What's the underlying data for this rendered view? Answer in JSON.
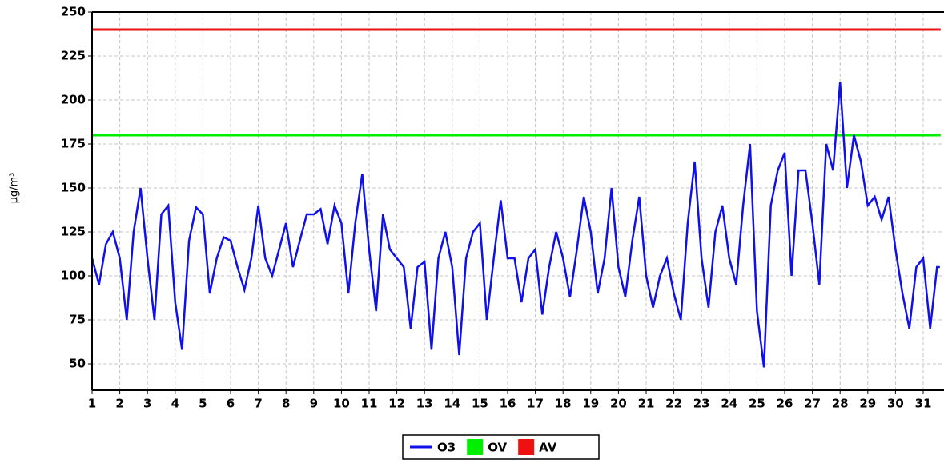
{
  "chart_data": {
    "type": "line",
    "y_label": "µg/m³",
    "x": [
      1,
      1.25,
      1.5,
      1.75,
      2,
      2.25,
      2.5,
      2.75,
      3,
      3.25,
      3.5,
      3.75,
      4,
      4.25,
      4.5,
      4.75,
      5,
      5.25,
      5.5,
      5.75,
      6,
      6.25,
      6.5,
      6.75,
      7,
      7.25,
      7.5,
      7.75,
      8,
      8.25,
      8.5,
      8.75,
      9,
      9.25,
      9.5,
      9.75,
      10,
      10.25,
      10.5,
      10.75,
      11,
      11.25,
      11.5,
      11.75,
      12,
      12.25,
      12.5,
      12.75,
      13,
      13.25,
      13.5,
      13.75,
      14,
      14.25,
      14.5,
      14.75,
      15,
      15.25,
      15.5,
      15.75,
      16,
      16.25,
      16.5,
      16.75,
      17,
      17.25,
      17.5,
      17.75,
      18,
      18.25,
      18.5,
      18.75,
      19,
      19.25,
      19.5,
      19.75,
      20,
      20.25,
      20.5,
      20.75,
      21,
      21.25,
      21.5,
      21.75,
      22,
      22.25,
      22.5,
      22.75,
      23,
      23.25,
      23.5,
      23.75,
      24,
      24.25,
      24.5,
      24.75,
      25,
      25.25,
      25.5,
      25.75,
      26,
      26.25,
      26.5,
      26.75,
      27,
      27.25,
      27.5,
      27.75,
      28,
      28.25,
      28.5,
      28.75,
      29,
      29.25,
      29.5,
      29.75,
      30,
      30.25,
      30.5,
      30.75,
      31,
      31.25,
      31.5,
      31.6
    ],
    "series": [
      {
        "name": "O3",
        "color": "#1010e8",
        "values": [
          110,
          95,
          118,
          125,
          110,
          75,
          125,
          150,
          110,
          75,
          135,
          140,
          85,
          58,
          120,
          139,
          135,
          90,
          110,
          122,
          120,
          105,
          92,
          110,
          140,
          110,
          100,
          115,
          130,
          105,
          120,
          135,
          135,
          138,
          118,
          140,
          130,
          90,
          130,
          158,
          115,
          80,
          135,
          115,
          110,
          105,
          70,
          105,
          108,
          58,
          110,
          125,
          105,
          55,
          110,
          125,
          130,
          75,
          110,
          143,
          110,
          110,
          85,
          110,
          115,
          78,
          105,
          125,
          110,
          88,
          115,
          145,
          125,
          90,
          110,
          150,
          105,
          88,
          120,
          145,
          100,
          82,
          100,
          110,
          90,
          75,
          130,
          165,
          110,
          82,
          125,
          140,
          110,
          95,
          140,
          175,
          80,
          48,
          140,
          160,
          170,
          100,
          160,
          160,
          130,
          95,
          175,
          160,
          210,
          150,
          180,
          165,
          140,
          145,
          132,
          145,
          115,
          90,
          70,
          105,
          110,
          70,
          105,
          105
        ]
      },
      {
        "name": "OV",
        "color": "#00ee00",
        "x": [
          1,
          31.63
        ],
        "values": [
          180,
          180
        ]
      },
      {
        "name": "AV",
        "color": "#ee1111",
        "x": [
          1,
          31.63
        ],
        "values": [
          240,
          240
        ]
      }
    ],
    "xlim": [
      1,
      31.63
    ],
    "ylim": [
      35,
      250
    ],
    "xticks": [
      1,
      2,
      3,
      4,
      5,
      6,
      7,
      8,
      9,
      10,
      11,
      12,
      13,
      14,
      15,
      16,
      17,
      18,
      19,
      20,
      21,
      22,
      23,
      24,
      25,
      26,
      27,
      28,
      29,
      30,
      31
    ],
    "yticks": [
      50,
      75,
      100,
      125,
      150,
      175,
      200,
      225,
      250
    ],
    "grid": true,
    "legend": "bottom"
  }
}
